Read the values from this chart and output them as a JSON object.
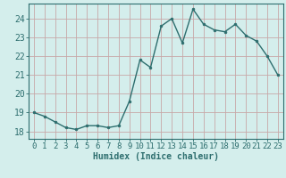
{
  "x": [
    0,
    1,
    2,
    3,
    4,
    5,
    6,
    7,
    8,
    9,
    10,
    11,
    12,
    13,
    14,
    15,
    16,
    17,
    18,
    19,
    20,
    21,
    22,
    23
  ],
  "y": [
    19.0,
    18.8,
    18.5,
    18.2,
    18.1,
    18.3,
    18.3,
    18.2,
    18.3,
    19.6,
    21.8,
    21.4,
    23.6,
    24.0,
    22.7,
    24.5,
    23.7,
    23.4,
    23.3,
    23.7,
    23.1,
    22.8,
    22.0,
    21.0
  ],
  "line_color": "#2d6e6e",
  "marker": "o",
  "markersize": 2.0,
  "linewidth": 1.0,
  "xlabel": "Humidex (Indice chaleur)",
  "xlabel_fontsize": 7,
  "ylabel_ticks": [
    18,
    19,
    20,
    21,
    22,
    23,
    24
  ],
  "xlim": [
    -0.5,
    23.5
  ],
  "ylim": [
    17.6,
    24.8
  ],
  "bg_color": "#d4eeec",
  "grid_color": "#c8a8a8",
  "tick_label_fontsize": 6.5,
  "spine_color": "#2d6e6e"
}
